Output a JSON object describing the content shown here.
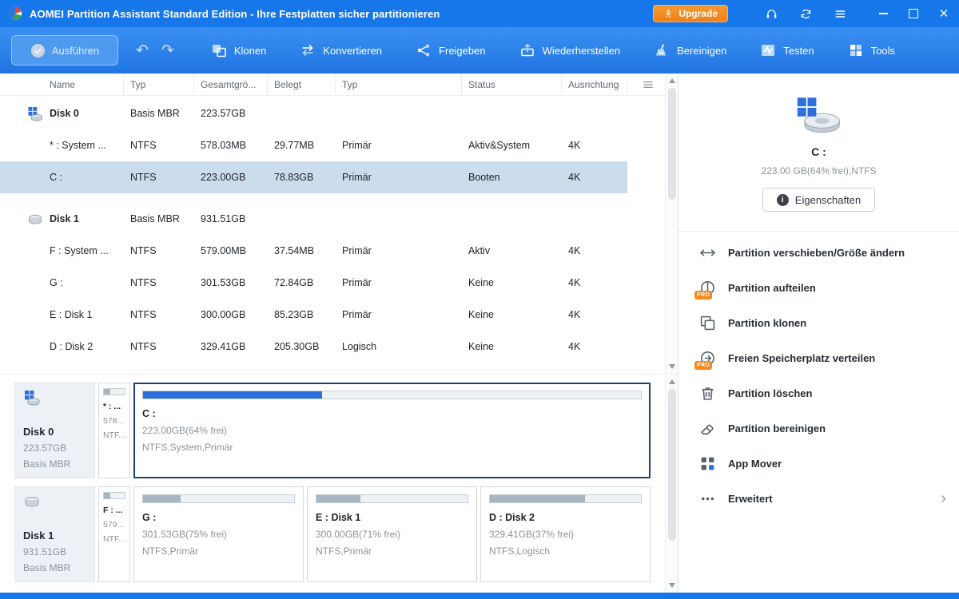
{
  "titlebar": {
    "title": "AOMEI Partition Assistant Standard Edition - Ihre Festplatten sicher partitionieren",
    "upgrade_label": "Upgrade"
  },
  "toolbar": {
    "execute": "Ausführen",
    "items": [
      {
        "id": "klonen",
        "label": "Klonen",
        "icon": "clone"
      },
      {
        "id": "konvertieren",
        "label": "Konvertieren",
        "icon": "convert"
      },
      {
        "id": "freigeben",
        "label": "Freigeben",
        "icon": "share"
      },
      {
        "id": "wiederherstellen",
        "label": "Wiederherstellen",
        "icon": "restore"
      },
      {
        "id": "bereinigen",
        "label": "Bereinigen",
        "icon": "clean"
      },
      {
        "id": "testen",
        "label": "Testen",
        "icon": "test"
      },
      {
        "id": "tools",
        "label": "Tools",
        "icon": "tools"
      }
    ]
  },
  "table": {
    "columns": [
      "Name",
      "Typ",
      "Gesamtgrö...",
      "Belegt",
      "Typ",
      "Status",
      "Ausrichtung"
    ],
    "rows": [
      {
        "kind": "disk",
        "icon": "disk-windows",
        "name": "Disk 0",
        "typ": "Basis MBR",
        "gesamt": "223.57GB",
        "belegt": "",
        "typ2": "",
        "status": "",
        "ausrichtung": ""
      },
      {
        "kind": "partition",
        "name": "* : System ...",
        "typ": "NTFS",
        "gesamt": "578.03MB",
        "belegt": "29.77MB",
        "typ2": "Primär",
        "status": "Aktiv&System",
        "ausrichtung": "4K"
      },
      {
        "kind": "partition",
        "selected": true,
        "name": "C :",
        "typ": "NTFS",
        "gesamt": "223.00GB",
        "belegt": "78.83GB",
        "typ2": "Primär",
        "status": "Booten",
        "ausrichtung": "4K"
      },
      {
        "kind": "disk",
        "icon": "disk",
        "name": "Disk 1",
        "typ": "Basis MBR",
        "gesamt": "931.51GB",
        "belegt": "",
        "typ2": "",
        "status": "",
        "ausrichtung": ""
      },
      {
        "kind": "partition",
        "name": "F : System ...",
        "typ": "NTFS",
        "gesamt": "579.00MB",
        "belegt": "37.54MB",
        "typ2": "Primär",
        "status": "Aktiv",
        "ausrichtung": "4K"
      },
      {
        "kind": "partition",
        "name": "G :",
        "typ": "NTFS",
        "gesamt": "301.53GB",
        "belegt": "72.84GB",
        "typ2": "Primär",
        "status": "Keine",
        "ausrichtung": "4K"
      },
      {
        "kind": "partition",
        "name": "E : Disk 1",
        "typ": "NTFS",
        "gesamt": "300.00GB",
        "belegt": "85.23GB",
        "typ2": "Primär",
        "status": "Keine",
        "ausrichtung": "4K"
      },
      {
        "kind": "partition",
        "name": "D : Disk 2",
        "typ": "NTFS",
        "gesamt": "329.41GB",
        "belegt": "205.30GB",
        "typ2": "Logisch",
        "status": "Keine",
        "ausrichtung": "4K"
      }
    ]
  },
  "disk_map": [
    {
      "disk": {
        "name": "Disk 0",
        "size": "223.57GB",
        "type": "Basis MBR",
        "icon": "disk-windows"
      },
      "partitions": [
        {
          "name": "* : ...",
          "line2": "578...",
          "line3": "NTF...",
          "small": true,
          "used_pct": 30,
          "bar": "gray"
        },
        {
          "name": "C :",
          "line2": "223.00GB(64% frei)",
          "line3": "NTFS,System,Primär",
          "used_pct": 36,
          "bar": "blue",
          "selected": true
        }
      ]
    },
    {
      "disk": {
        "name": "Disk 1",
        "size": "931.51GB",
        "type": "Basis MBR",
        "icon": "disk"
      },
      "partitions": [
        {
          "name": "F : ...",
          "line2": "579...",
          "line3": "NTF...",
          "small": true,
          "used_pct": 30,
          "bar": "gray"
        },
        {
          "name": "G :",
          "line2": "301.53GB(75% frei)",
          "line3": "NTFS,Primär",
          "used_pct": 25,
          "bar": "gray"
        },
        {
          "name": "E : Disk 1",
          "line2": "300.00GB(71% frei)",
          "line3": "NTFS,Primär",
          "used_pct": 29,
          "bar": "gray"
        },
        {
          "name": "D : Disk 2",
          "line2": "329.41GB(37% frei)",
          "line3": "NTFS,Logisch",
          "used_pct": 63,
          "bar": "gray"
        }
      ]
    }
  ],
  "sidebar": {
    "selected_title": "C :",
    "selected_info": "223.00 GB(64% frei),NTFS",
    "properties_label": "Eigenschaften",
    "pro_label": "PRO",
    "actions": [
      {
        "label": "Partition verschieben/Größe ändern",
        "icon": "move-resize",
        "pro": false
      },
      {
        "label": "Partition aufteilen",
        "icon": "split",
        "pro": true
      },
      {
        "label": "Partition klonen",
        "icon": "clone-partition",
        "pro": false
      },
      {
        "label": "Freien Speicherplatz verteilen",
        "icon": "allocate",
        "pro": true
      },
      {
        "label": "Partition löschen",
        "icon": "trash",
        "pro": false
      },
      {
        "label": "Partition bereinigen",
        "icon": "wipe",
        "pro": false
      },
      {
        "label": "App Mover",
        "icon": "app-mover",
        "pro": false
      },
      {
        "label": "Erweitert",
        "icon": "more",
        "pro": false,
        "chevron": true
      }
    ]
  },
  "colors": {
    "titlebar_blue": "#1577e9",
    "accent_orange": "#f5891d",
    "selected_row": "#cbdced",
    "bar_blue": "#2d6fd9",
    "bar_gray": "#a9b5c0"
  }
}
